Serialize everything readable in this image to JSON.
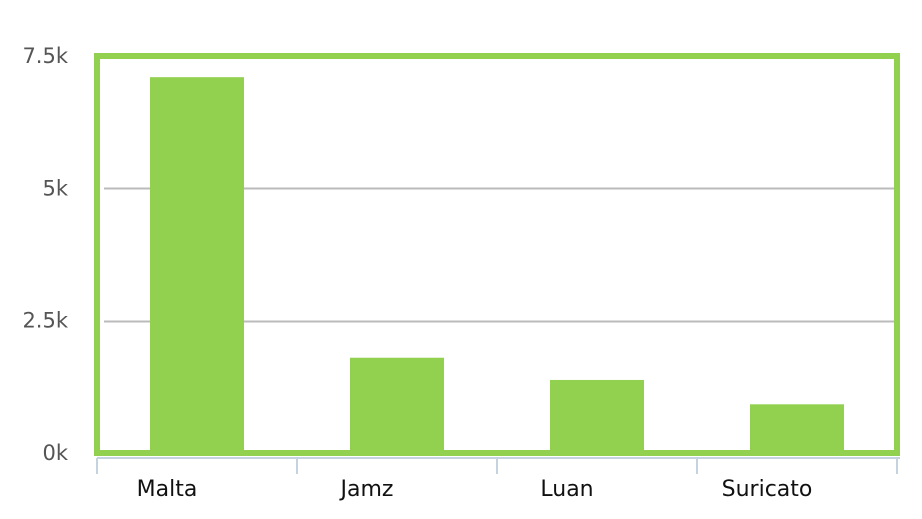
{
  "chart_data": {
    "type": "bar",
    "categories": [
      "Malta",
      "Jamz",
      "Luan",
      "Suricato"
    ],
    "values": [
      7100,
      1800,
      1380,
      920
    ],
    "ylim": [
      0,
      7500
    ],
    "yticks": [
      0,
      2500,
      5000,
      7500
    ],
    "ytick_labels": [
      "0k",
      "2.5k",
      "5k",
      "7.5k"
    ],
    "grid": true,
    "legend": "none",
    "colors": {
      "bar": "#92d050",
      "frame": "#92d050",
      "grid": "#bbbbbb",
      "axis": "#c5d3e0"
    }
  }
}
